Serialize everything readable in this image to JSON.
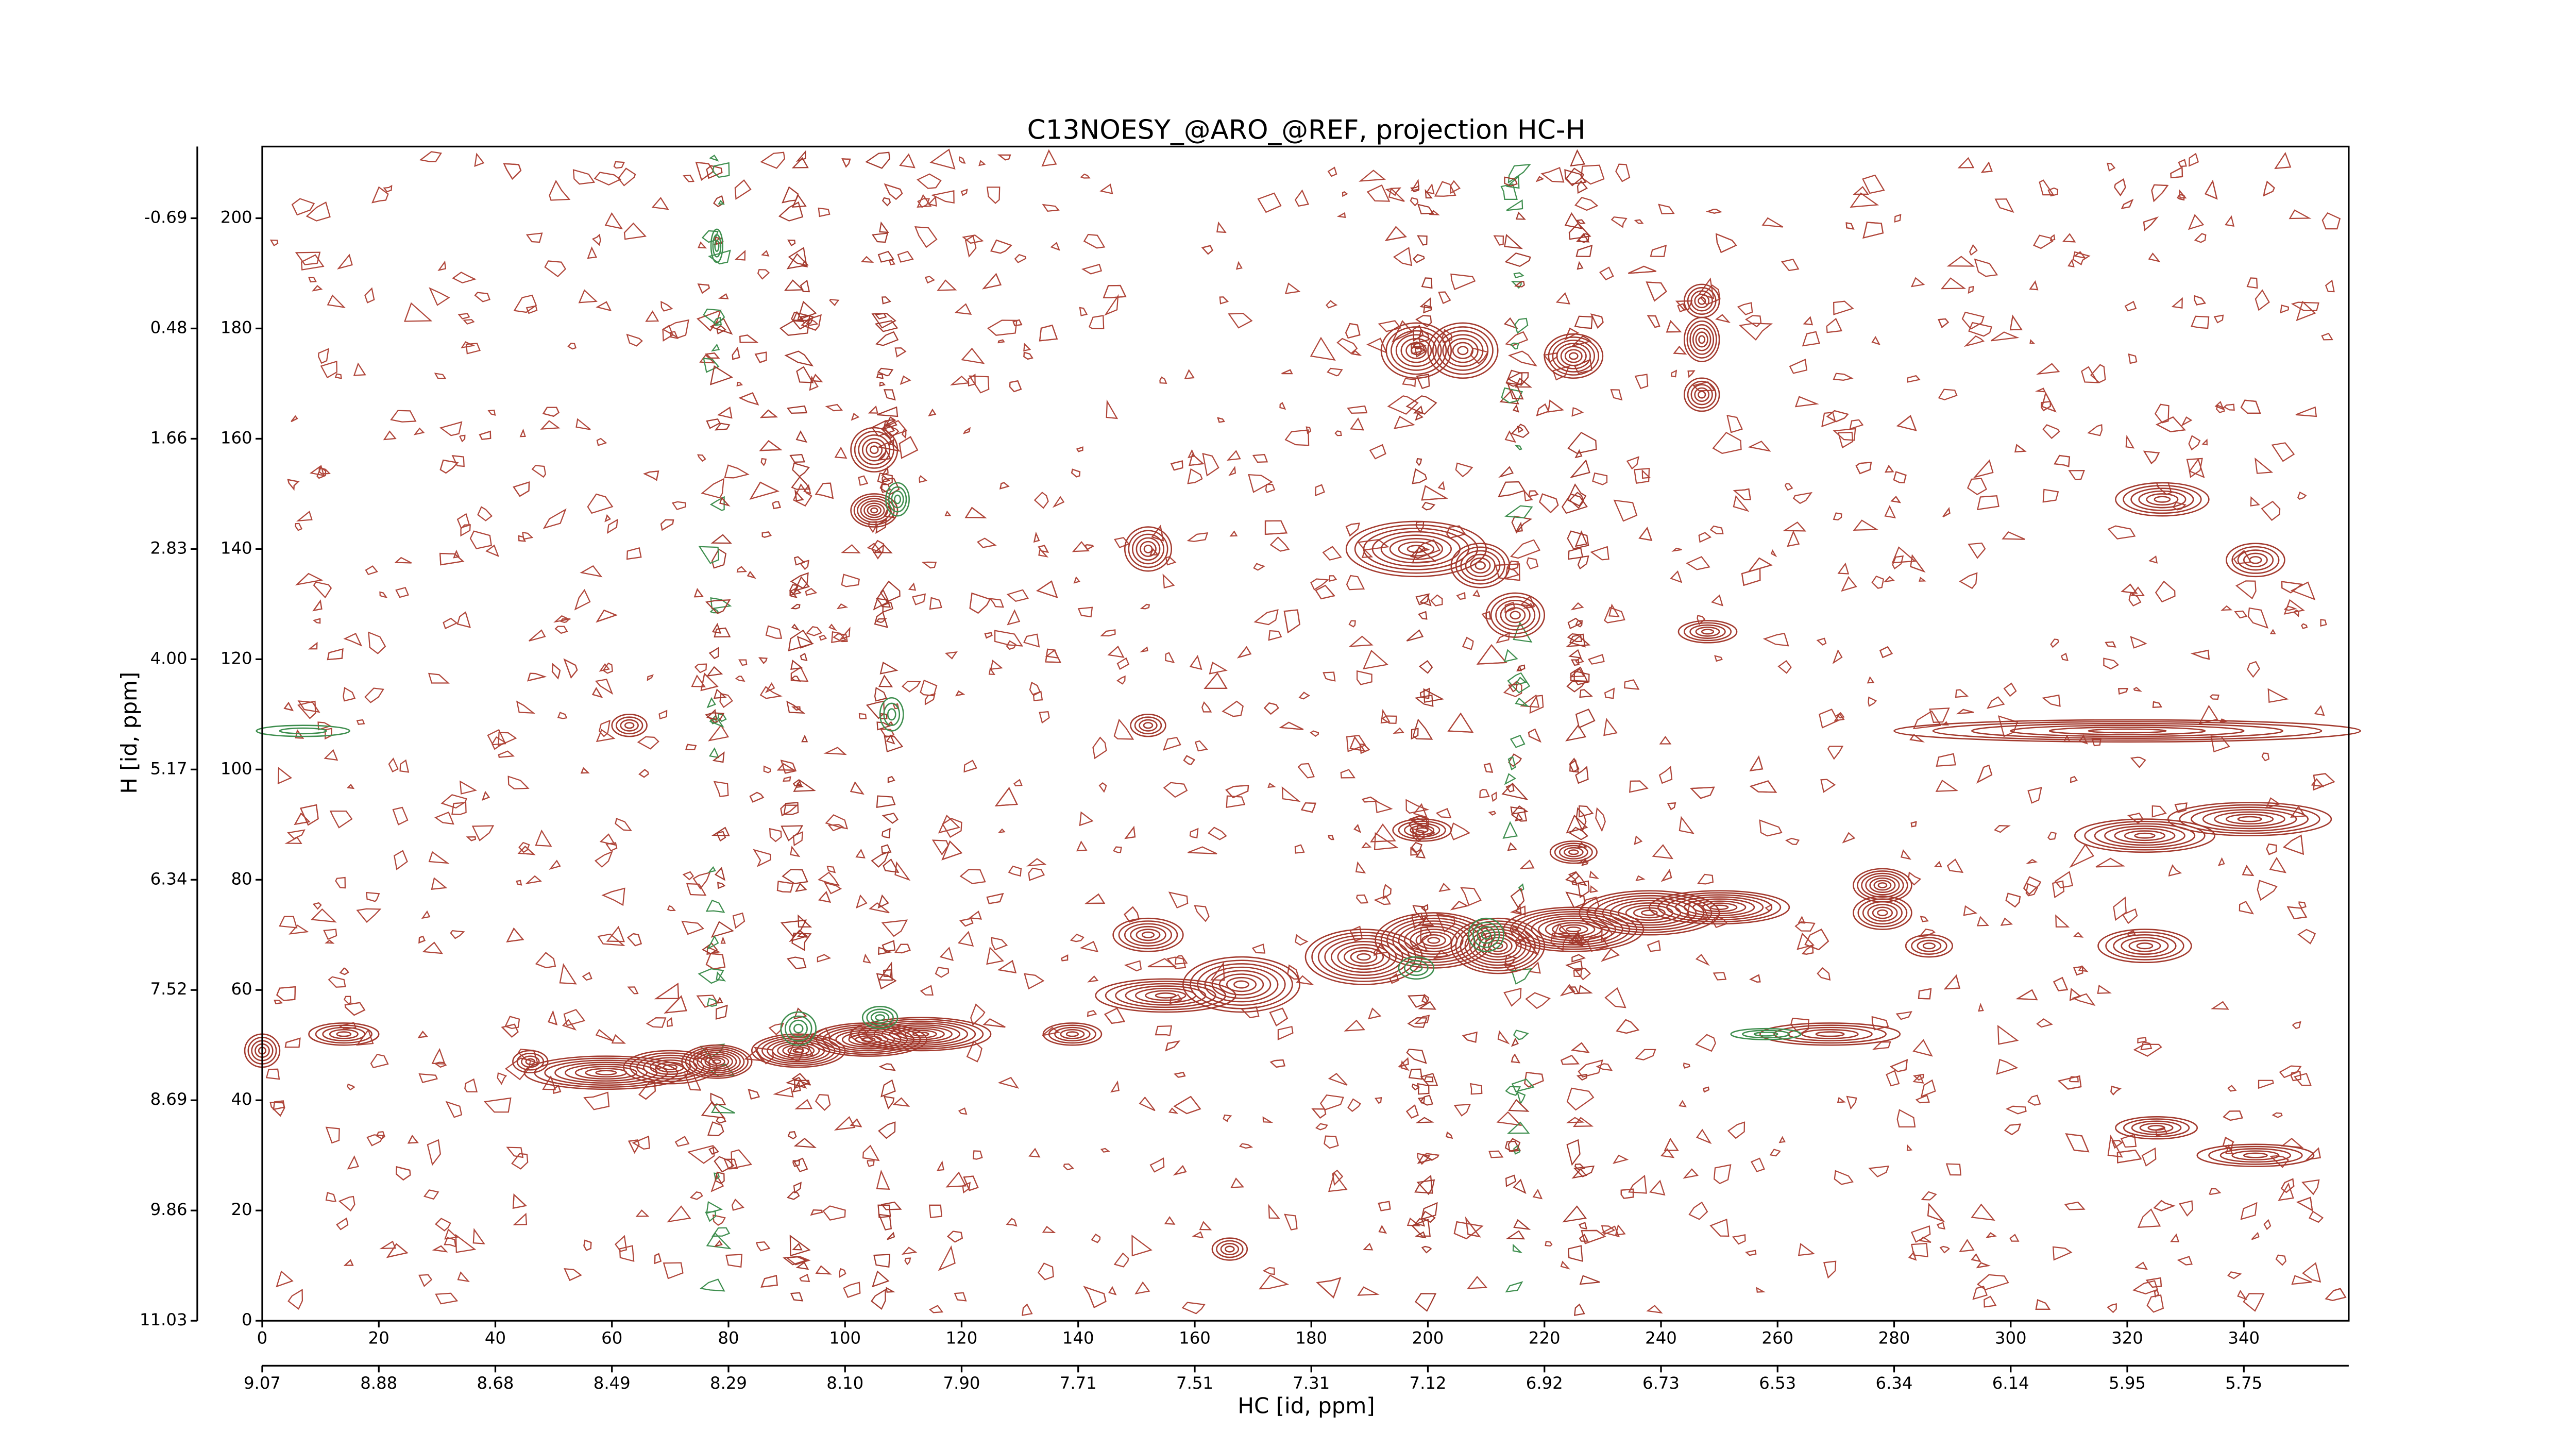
{
  "chart_data": {
    "type": "contour",
    "title": "C13NOESY_@ARO_@REF, projection HC-H",
    "x_label": "HC [id, ppm]",
    "y_label": "H [id, ppm]",
    "xlim": [
      0,
      358
    ],
    "ylim": [
      0,
      213
    ],
    "xticks": [
      0,
      20,
      40,
      60,
      80,
      100,
      120,
      140,
      160,
      180,
      200,
      220,
      240,
      260,
      280,
      300,
      320,
      340
    ],
    "x2ticks": [
      {
        "value": 0,
        "label": "9.07"
      },
      {
        "value": 20,
        "label": "8.88"
      },
      {
        "value": 40,
        "label": "8.68"
      },
      {
        "value": 60,
        "label": "8.49"
      },
      {
        "value": 80,
        "label": "8.29"
      },
      {
        "value": 100,
        "label": "8.10"
      },
      {
        "value": 120,
        "label": "7.90"
      },
      {
        "value": 140,
        "label": "7.71"
      },
      {
        "value": 160,
        "label": "7.51"
      },
      {
        "value": 180,
        "label": "7.31"
      },
      {
        "value": 200,
        "label": "7.12"
      },
      {
        "value": 220,
        "label": "6.92"
      },
      {
        "value": 240,
        "label": "6.73"
      },
      {
        "value": 260,
        "label": "6.53"
      },
      {
        "value": 280,
        "label": "6.34"
      },
      {
        "value": 300,
        "label": "6.14"
      },
      {
        "value": 320,
        "label": "5.95"
      },
      {
        "value": 340,
        "label": "5.75"
      }
    ],
    "yticks": [
      0,
      20,
      40,
      60,
      80,
      100,
      120,
      140,
      160,
      180,
      200
    ],
    "y2ticks": [
      {
        "value": 0,
        "label": "11.03"
      },
      {
        "value": 20,
        "label": "9.86"
      },
      {
        "value": 40,
        "label": "8.69"
      },
      {
        "value": 60,
        "label": "7.52"
      },
      {
        "value": 80,
        "label": "6.34"
      },
      {
        "value": 100,
        "label": "5.17"
      },
      {
        "value": 120,
        "label": "4.00"
      },
      {
        "value": 140,
        "label": "2.83"
      },
      {
        "value": 160,
        "label": "1.66"
      },
      {
        "value": 180,
        "label": "0.48"
      },
      {
        "value": 200,
        "label": "-0.69"
      }
    ],
    "series": [
      {
        "color": "#a33a2e",
        "peaks": [
          [
            0,
            49,
            3,
            3,
            5
          ],
          [
            14,
            52,
            6,
            2,
            5
          ],
          [
            46,
            47,
            3,
            2,
            4
          ],
          [
            59,
            45,
            14,
            3,
            8
          ],
          [
            70,
            46,
            8,
            3,
            7
          ],
          [
            78,
            47,
            6,
            3,
            9
          ],
          [
            92,
            49,
            8,
            3,
            9
          ],
          [
            104,
            51,
            10,
            3,
            9
          ],
          [
            113,
            52,
            12,
            3,
            9
          ],
          [
            139,
            52,
            5,
            2,
            5
          ],
          [
            155,
            59,
            12,
            3,
            7
          ],
          [
            168,
            61,
            10,
            5,
            8
          ],
          [
            152,
            70,
            6,
            3,
            6
          ],
          [
            189,
            66,
            10,
            5,
            9
          ],
          [
            201,
            69,
            10,
            5,
            10
          ],
          [
            212,
            68,
            8,
            5,
            10
          ],
          [
            225,
            71,
            12,
            4,
            10
          ],
          [
            238,
            74,
            12,
            4,
            9
          ],
          [
            250,
            75,
            12,
            3,
            8
          ],
          [
            278,
            79,
            5,
            3,
            7
          ],
          [
            278,
            74,
            5,
            3,
            6
          ],
          [
            269,
            52,
            12,
            2,
            5
          ],
          [
            323,
            88,
            12,
            3,
            7
          ],
          [
            341,
            91,
            14,
            3,
            7
          ],
          [
            323,
            68,
            8,
            3,
            6
          ],
          [
            326,
            149,
            8,
            3,
            6
          ],
          [
            342,
            138,
            5,
            3,
            5
          ],
          [
            325,
            35,
            7,
            2,
            5
          ],
          [
            342,
            30,
            10,
            2,
            5
          ],
          [
            320,
            107,
            40,
            2,
            6
          ],
          [
            198,
            176,
            6,
            5,
            7
          ],
          [
            206,
            176,
            6,
            5,
            7
          ],
          [
            198,
            140,
            12,
            5,
            8
          ],
          [
            209,
            137,
            5,
            4,
            6
          ],
          [
            225,
            175,
            5,
            4,
            7
          ],
          [
            247,
            178,
            3,
            4,
            6
          ],
          [
            247,
            185,
            3,
            3,
            5
          ],
          [
            247,
            168,
            3,
            3,
            5
          ],
          [
            105,
            147,
            4,
            3,
            7
          ],
          [
            105,
            158,
            4,
            4,
            6
          ],
          [
            152,
            140,
            4,
            4,
            6
          ],
          [
            248,
            125,
            5,
            2,
            5
          ],
          [
            215,
            128,
            5,
            4,
            6
          ],
          [
            152,
            108,
            3,
            2,
            4
          ],
          [
            63,
            108,
            3,
            2,
            4
          ],
          [
            166,
            13,
            3,
            2,
            4
          ],
          [
            199,
            89,
            5,
            2,
            5
          ],
          [
            225,
            85,
            4,
            2,
            5
          ],
          [
            286,
            68,
            4,
            2,
            4
          ]
        ]
      },
      {
        "color": "#3e8e4e",
        "peaks": [
          [
            109,
            149,
            2,
            3,
            4
          ],
          [
            210,
            70,
            3,
            3,
            4
          ],
          [
            198,
            64,
            3,
            2,
            3
          ],
          [
            106,
            55,
            3,
            2,
            4
          ],
          [
            92,
            53,
            3,
            3,
            4
          ],
          [
            7,
            107,
            8,
            1,
            2
          ],
          [
            78,
            195,
            1,
            3,
            3
          ],
          [
            108,
            110,
            2,
            3,
            3
          ],
          [
            258,
            52,
            6,
            1,
            3
          ]
        ]
      }
    ]
  }
}
